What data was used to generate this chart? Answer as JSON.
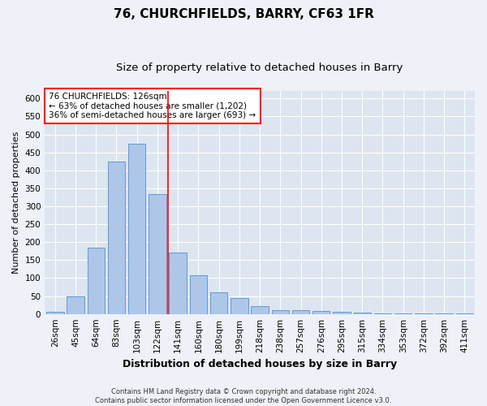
{
  "title": "76, CHURCHFIELDS, BARRY, CF63 1FR",
  "subtitle": "Size of property relative to detached houses in Barry",
  "xlabel": "Distribution of detached houses by size in Barry",
  "ylabel": "Number of detached properties",
  "footer_line1": "Contains HM Land Registry data © Crown copyright and database right 2024.",
  "footer_line2": "Contains public sector information licensed under the Open Government Licence v3.0.",
  "categories": [
    "26sqm",
    "45sqm",
    "64sqm",
    "83sqm",
    "103sqm",
    "122sqm",
    "141sqm",
    "160sqm",
    "180sqm",
    "199sqm",
    "218sqm",
    "238sqm",
    "257sqm",
    "276sqm",
    "295sqm",
    "315sqm",
    "334sqm",
    "353sqm",
    "372sqm",
    "392sqm",
    "411sqm"
  ],
  "values": [
    5,
    50,
    185,
    425,
    475,
    335,
    172,
    107,
    60,
    44,
    23,
    10,
    10,
    8,
    5,
    3,
    2,
    1,
    1,
    1,
    2
  ],
  "bar_color": "#aec6e8",
  "bar_edge_color": "#5b9bd5",
  "vline_x": 5.5,
  "vline_color": "red",
  "annotation_text": "76 CHURCHFIELDS: 126sqm\n← 63% of detached houses are smaller (1,202)\n36% of semi-detached houses are larger (693) →",
  "annotation_box_color": "white",
  "annotation_box_edge_color": "red",
  "ylim": [
    0,
    620
  ],
  "yticks": [
    0,
    50,
    100,
    150,
    200,
    250,
    300,
    350,
    400,
    450,
    500,
    550,
    600
  ],
  "background_color": "#eef2f8",
  "plot_bg_color": "#dde5f0",
  "grid_color": "white",
  "title_fontsize": 11,
  "subtitle_fontsize": 9.5,
  "xlabel_fontsize": 9,
  "ylabel_fontsize": 8,
  "tick_fontsize": 7.5,
  "annotation_fontsize": 7.5,
  "footer_fontsize": 6
}
